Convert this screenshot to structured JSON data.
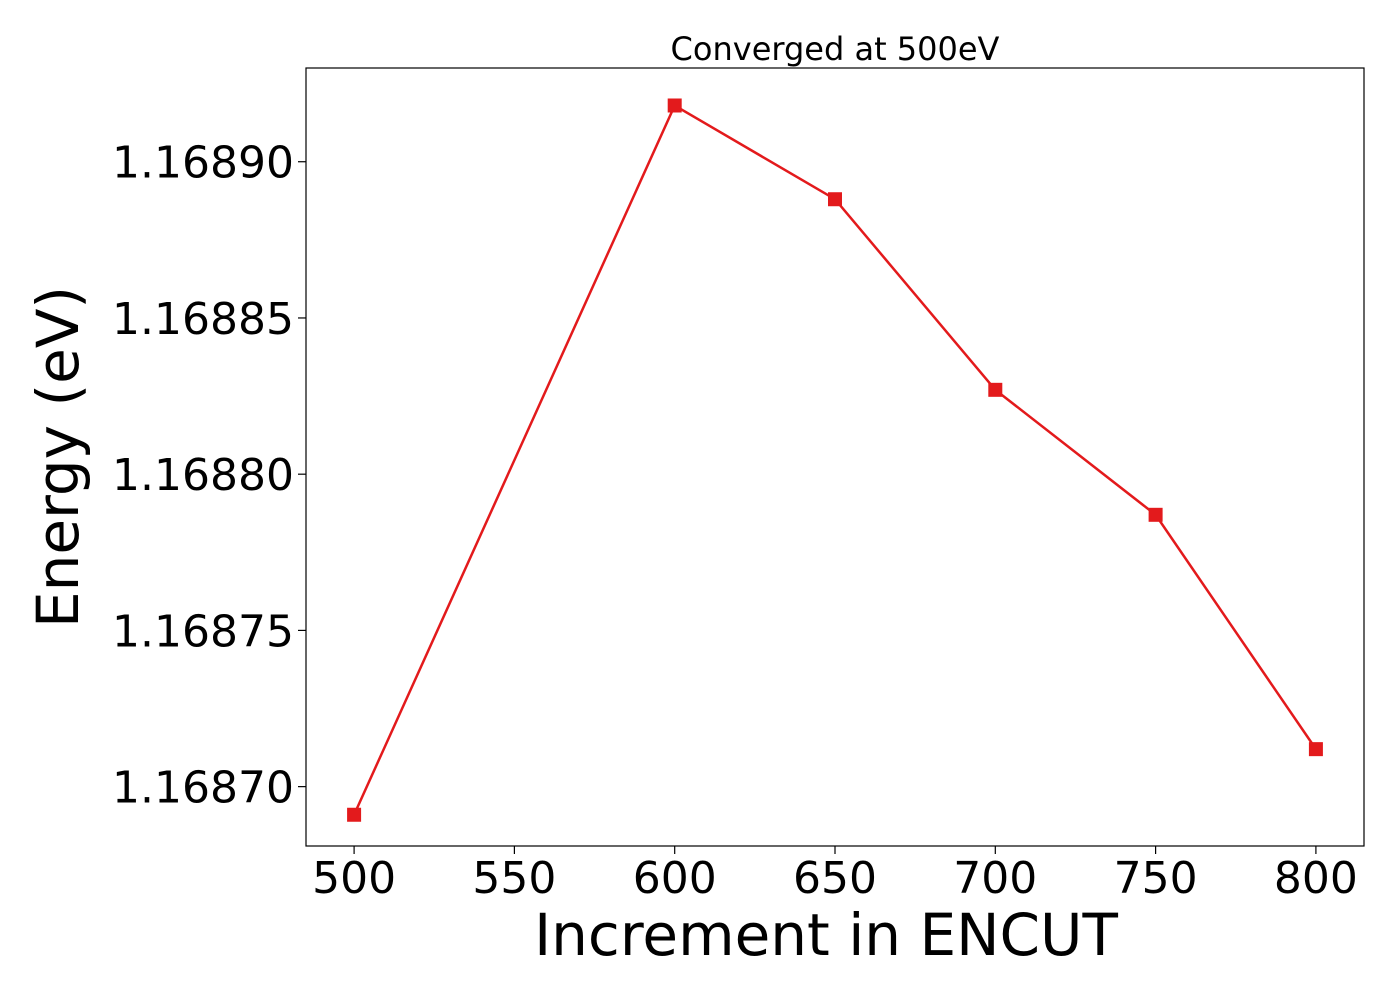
{
  "chart_data": {
    "type": "line",
    "title": "Converged at 500eV",
    "xlabel": "Increment in ENCUT",
    "ylabel": "Energy (eV)",
    "x": [
      500,
      600,
      650,
      700,
      750,
      800
    ],
    "series": [
      {
        "values": [
          1.168691,
          1.168918,
          1.168888,
          1.168827,
          1.168787,
          1.168712
        ],
        "color": "#e31a1c",
        "marker": "square"
      }
    ],
    "xticks": [
      500,
      550,
      600,
      650,
      700,
      750,
      800
    ],
    "xtick_labels": [
      "500",
      "550",
      "600",
      "650",
      "700",
      "750",
      "800"
    ],
    "yticks": [
      1.1687,
      1.16875,
      1.1688,
      1.16885,
      1.1689
    ],
    "ytick_labels": [
      "1.16870",
      "1.16875",
      "1.16880",
      "1.16885",
      "1.16890"
    ],
    "xlim": [
      485,
      815
    ],
    "ylim": [
      1.168681,
      1.16893
    ],
    "grid": false,
    "legend": false
  }
}
